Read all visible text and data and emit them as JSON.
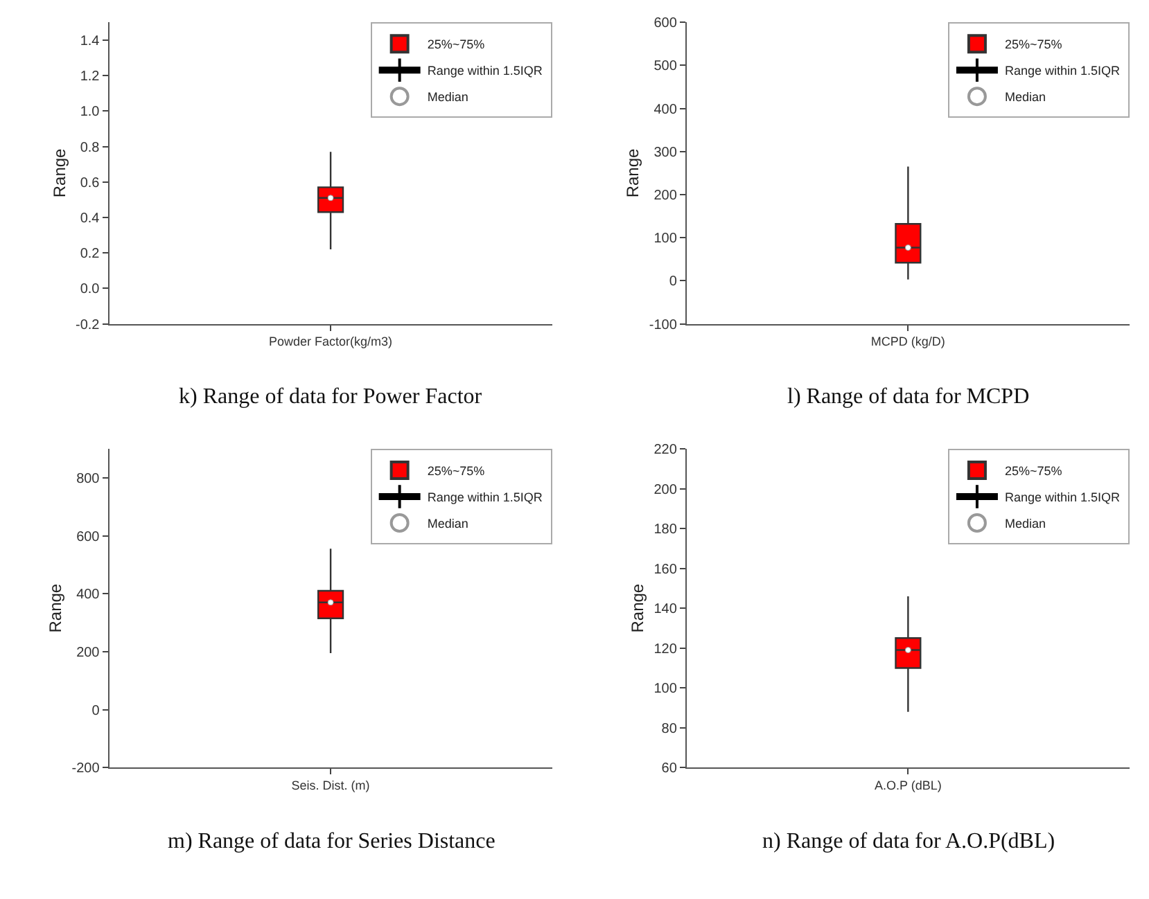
{
  "chart_data": [
    {
      "type": "box",
      "title": "k) Range of data for Power Factor",
      "ylabel": "Range",
      "categories": [
        "Powder Factor(kg/m3)"
      ],
      "ylim": [
        -0.2,
        1.5
      ],
      "yticks": [
        {
          "value": -0.2,
          "label": "-0.2"
        },
        {
          "value": 0,
          "label": "0.0"
        },
        0.2,
        0.4,
        0.6,
        0.8,
        {
          "value": 1,
          "label": "1.0"
        },
        1.2,
        1.4
      ],
      "legend": "top right",
      "series": [
        {
          "name": "25%~75%",
          "color": "#ff0000",
          "boxes": [
            {
              "low": 0.22,
              "q1": 0.43,
              "median": 0.51,
              "q3": 0.57,
              "high": 0.77
            }
          ]
        },
        {
          "type": "line",
          "name": "Range within 1.5IQR",
          "color": "#000000",
          "values": [
            null
          ]
        },
        {
          "type": "scatter",
          "name": "Median",
          "color": "#ffffff",
          "marker": "circle",
          "values": [
            0.51
          ]
        }
      ]
    },
    {
      "type": "box",
      "title": "l) Range of data for MCPD",
      "ylabel": "Range",
      "categories": [
        "MCPD (kg/D)"
      ],
      "ylim": [
        -100,
        600
      ],
      "yticks": [
        -100,
        0,
        100,
        200,
        300,
        400,
        500,
        600
      ],
      "legend": "top right",
      "series": [
        {
          "name": "25%~75%",
          "color": "#ff0000",
          "boxes": [
            {
              "low": 3,
              "q1": 42,
              "median": 77,
              "q3": 132,
              "high": 265
            }
          ]
        },
        {
          "type": "line",
          "name": "Range within 1.5IQR",
          "color": "#000000",
          "values": [
            null
          ]
        },
        {
          "type": "scatter",
          "name": "Median",
          "color": "#ffffff",
          "marker": "circle",
          "values": [
            77
          ]
        }
      ]
    },
    {
      "type": "box",
      "title": "m) Range of data for Series Distance",
      "ylabel": "Range",
      "categories": [
        "Seis. Dist. (m)"
      ],
      "ylim": [
        -200,
        900
      ],
      "yticks": [
        -200,
        0,
        200,
        400,
        600,
        800
      ],
      "legend": "top right",
      "series": [
        {
          "name": "25%~75%",
          "color": "#ff0000",
          "boxes": [
            {
              "low": 195,
              "q1": 315,
              "median": 370,
              "q3": 410,
              "high": 555
            }
          ]
        },
        {
          "type": "line",
          "name": "Range within 1.5IQR",
          "color": "#000000",
          "values": [
            null
          ]
        },
        {
          "type": "scatter",
          "name": "Median",
          "color": "#ffffff",
          "marker": "circle",
          "values": [
            370
          ]
        }
      ]
    },
    {
      "type": "box",
      "title": "n) Range of data for A.O.P(dBL)",
      "ylabel": "Range",
      "categories": [
        "A.O.P (dBL)"
      ],
      "ylim": [
        60,
        220
      ],
      "yticks": [
        60,
        80,
        100,
        120,
        140,
        160,
        180,
        200,
        220
      ],
      "legend": "top right",
      "series": [
        {
          "name": "25%~75%",
          "color": "#ff0000",
          "boxes": [
            {
              "low": 88,
              "q1": 110,
              "median": 119,
              "q3": 125,
              "high": 146
            }
          ]
        },
        {
          "type": "line",
          "name": "Range within 1.5IQR",
          "color": "#000000",
          "values": [
            null
          ]
        },
        {
          "type": "scatter",
          "name": "Median",
          "color": "#ffffff",
          "marker": "circle",
          "values": [
            119
          ]
        }
      ]
    }
  ]
}
